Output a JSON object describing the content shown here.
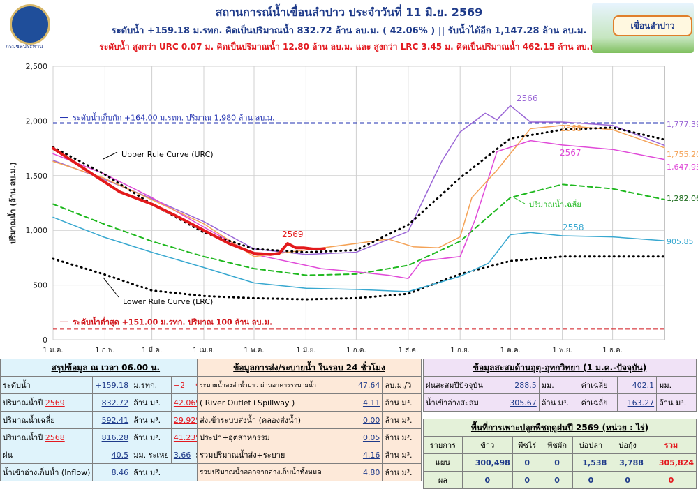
{
  "header": {
    "title": "สถานการณ์น้ำเขื่อนลำปาว ประจำวันที่ 11 มิ.ย. 2569",
    "line2": "ระดับน้ำ +159.18 ม.รทก.  คิดเป็นปริมาณน้ำ 832.72 ล้าน ลบ.ม. ( 42.06% )  || รับน้ำได้อีก 1,147.28 ล้าน ลบ.ม.",
    "line3": "ระดับน้ำ สูงกว่า URC 0.07 ม. คิดเป็นปริมาณน้ำ 12.80 ล้าน ลบ.ม. และ สูงกว่า LRC 3.45 ม. คิดเป็นปริมาณน้ำ 462.15 ล้าน ลบ.ม.",
    "logo_caption": "กรมชลประทาน",
    "badge": "เขื่อนลำปาว"
  },
  "chart_data": {
    "type": "line",
    "ylabel": "ปริมาณน้ำ (ล้าน ลบ.ม.)",
    "ylim": [
      0,
      2500
    ],
    "yticks": [
      "0",
      "500",
      "1,000",
      "1,500",
      "2,000",
      "2,500"
    ],
    "xticks": [
      "1 ม.ค.",
      "1 ก.พ.",
      "1 มี.ค.",
      "1 เม.ย.",
      "1 พ.ค.",
      "1 มิ.ย.",
      "1 ก.ค.",
      "1 ส.ค.",
      "1 ก.ย.",
      "1 ต.ค.",
      "1 พ.ย.",
      "1 ธ.ค."
    ],
    "xlim": [
      0,
      365
    ],
    "grid": true,
    "hlines": [
      {
        "label": "ระดับน้ำเก็บกัก  +164.00 ม.รทก. ปริมาณ 1,980 ล้าน ลบ.ม.",
        "value": 1980,
        "color": "#1f2fb0"
      },
      {
        "label": "ระดับน้ำต่ำสุด  +151.00 ม.รทก. ปริมาณ 100 ล้าน ลบ.ม.",
        "value": 100,
        "color": "#d0151b"
      }
    ],
    "annotations": {
      "urc": "Upper Rule Curve (URC)",
      "lrc": "Lower Rule Curve (LRC)",
      "avg": "ปริมาณน้ำเฉลี่ย",
      "y2569": "2569",
      "y2566": "2566",
      "y2568": "2568",
      "y2567": "2567",
      "y2558": "2558"
    },
    "end_labels": [
      "1,777.39",
      "1,755.20",
      "1,647.93",
      "1,282.06",
      "905.85"
    ],
    "series": [
      {
        "id": "urc",
        "color": "#000000",
        "dash": "dot",
        "width": 3,
        "x": [
          0,
          30,
          59,
          90,
          120,
          151,
          181,
          212,
          243,
          273,
          304,
          334,
          365
        ],
        "y": [
          1760,
          1520,
          1240,
          980,
          830,
          800,
          820,
          1050,
          1480,
          1840,
          1920,
          1940,
          1830
        ]
      },
      {
        "id": "lrc",
        "color": "#000000",
        "dash": "dot",
        "width": 3,
        "x": [
          0,
          30,
          59,
          90,
          120,
          151,
          181,
          212,
          243,
          273,
          304,
          334,
          365
        ],
        "y": [
          740,
          600,
          450,
          400,
          380,
          370,
          380,
          420,
          600,
          720,
          760,
          760,
          760
        ]
      },
      {
        "id": "avg",
        "color": "#1fb81f",
        "dash": "dash",
        "width": 2,
        "x": [
          0,
          30,
          59,
          90,
          120,
          151,
          181,
          212,
          243,
          273,
          304,
          334,
          365
        ],
        "y": [
          1240,
          1060,
          900,
          760,
          650,
          590,
          600,
          680,
          900,
          1300,
          1420,
          1380,
          1282
        ]
      },
      {
        "id": "y2558",
        "color": "#38a8d0",
        "dash": "",
        "width": 1.5,
        "x": [
          0,
          30,
          59,
          90,
          120,
          151,
          181,
          212,
          243,
          260,
          273,
          285,
          304,
          334,
          365
        ],
        "y": [
          1120,
          940,
          800,
          660,
          520,
          470,
          460,
          440,
          580,
          700,
          960,
          980,
          950,
          940,
          905
        ]
      },
      {
        "id": "y2566",
        "color": "#9a66d6",
        "dash": "",
        "width": 1.5,
        "x": [
          0,
          30,
          59,
          90,
          120,
          151,
          181,
          212,
          232,
          243,
          258,
          265,
          273,
          285,
          304,
          334,
          365
        ],
        "y": [
          1640,
          1470,
          1290,
          1080,
          830,
          780,
          800,
          990,
          1630,
          1900,
          2070,
          2010,
          2140,
          1990,
          1990,
          1960,
          1777
        ]
      },
      {
        "id": "y2567",
        "color": "#e04ad8",
        "dash": "",
        "width": 1.5,
        "x": [
          0,
          30,
          59,
          90,
          120,
          151,
          160,
          181,
          200,
          212,
          220,
          243,
          252,
          265,
          285,
          304,
          334,
          365
        ],
        "y": [
          1700,
          1520,
          1300,
          1030,
          780,
          680,
          650,
          620,
          590,
          560,
          720,
          760,
          1100,
          1720,
          1820,
          1780,
          1740,
          1648
        ]
      },
      {
        "id": "y2568",
        "color": "#f4a256",
        "dash": "",
        "width": 1.5,
        "x": [
          0,
          30,
          59,
          90,
          120,
          151,
          181,
          200,
          215,
          230,
          243,
          250,
          265,
          285,
          304,
          334,
          365
        ],
        "y": [
          1630,
          1480,
          1280,
          1060,
          760,
          820,
          880,
          920,
          850,
          840,
          940,
          1300,
          1550,
          1930,
          1960,
          1920,
          1755
        ]
      },
      {
        "id": "y2569",
        "color": "#e31a1c",
        "dash": "",
        "width": 4,
        "x": [
          0,
          20,
          40,
          59,
          75,
          90,
          105,
          120,
          130,
          135,
          140,
          145,
          150,
          155,
          160,
          162
        ],
        "y": [
          1750,
          1550,
          1350,
          1240,
          1120,
          1000,
          880,
          790,
          780,
          790,
          880,
          840,
          840,
          830,
          830,
          833
        ]
      }
    ]
  },
  "summary": {
    "head": "สรุปข้อมูล ณ เวลา 06.00 น.",
    "rows": [
      {
        "label": "ระดับน้ำ",
        "value": "+159.18",
        "unit": "ม.รทก.",
        "extra": "+2",
        "extra_unit": "ซม."
      },
      {
        "label": "ปริมาณน้ำปี",
        "year": "2569",
        "value": "832.72",
        "unit": "ล้าน ม³.",
        "extra": "42.06%"
      },
      {
        "label": "ปริมาณน้ำเฉลี่ย",
        "value": "592.41",
        "unit": "ล้าน ม³.",
        "extra": "29.92%"
      },
      {
        "label": "ปริมาณน้ำปี",
        "year": "2568",
        "value": "816.28",
        "unit": "ล้าน ม³.",
        "extra": "41.23%"
      },
      {
        "label": "ฝน",
        "value": "40.5",
        "unit": "มม. ระเหย",
        "extra": "3.66",
        "extra_unit": "มม."
      },
      {
        "label": "น้ำเข้าอ่างเก็บน้ำ (Inflow)",
        "value": "8.46",
        "unit": "ล้าน ม³."
      }
    ]
  },
  "release": {
    "head": "ข้อมูลการส่ง/ระบายน้ำ ในรอบ 24 ชั่วโมง",
    "rows": [
      {
        "label": "ระบายน้ำลงลำน้ำปาว ผ่านอาคารระบายน้ำ",
        "value": "47.64",
        "unit": "ลบ.ม./วิ"
      },
      {
        "label": "( River Outlet+Spillway )",
        "value": "4.11",
        "unit": "ล้าน ม³."
      },
      {
        "label": "ส่งเข้าระบบส่งน้ำ (คลองส่งน้ำ)",
        "value": "0.00",
        "unit": "ล้าน ม³."
      },
      {
        "label": "ประปา+อุตสาหกรรม",
        "value": "0.05",
        "unit": "ล้าน ม³."
      },
      {
        "label": "รวมปริมาณน้ำส่ง+ระบาย",
        "value": "4.16",
        "unit": "ล้าน ม³."
      },
      {
        "label": "รวมปริมาณน้ำออกจากอ่างเก็บน้ำทั้งหมด",
        "value": "4.80",
        "unit": "ล้าน ม³."
      }
    ]
  },
  "hydro": {
    "head": "ข้อมูลสะสมด้านอุตุ-อุทกวิทยา (1 ม.ค.-ปัจจุบัน)",
    "rain_label": "ฝนสะสมปีปัจจุบัน",
    "rain": "288.5",
    "rain_unit": "มม.",
    "rain_avg_label": "ค่าเฉลี่ย",
    "rain_avg": "402.1",
    "rain_avg_unit": "มม.",
    "inflow_label": "น้ำเข้าอ่างสะสม",
    "inflow": "305.67",
    "inflow_unit": "ล้าน ม³.",
    "inflow_avg_label": "ค่าเฉลี่ย",
    "inflow_avg": "163.27",
    "inflow_avg_unit": "ล้าน ม³."
  },
  "crop": {
    "head": "พื้นที่การเพาะปลูกพืชฤดูฝนปี 2569 (หน่วย : ไร่)",
    "cols": [
      "รายการ",
      "ข้าว",
      "พืชไร่",
      "พืชผัก",
      "บ่อปลา",
      "บ่อกุ้ง",
      "รวม"
    ],
    "plan": [
      "แผน",
      "300,498",
      "0",
      "0",
      "1,538",
      "3,788",
      "305,824"
    ],
    "result": [
      "ผล",
      "0",
      "0",
      "0",
      "0",
      "0",
      "0"
    ]
  }
}
